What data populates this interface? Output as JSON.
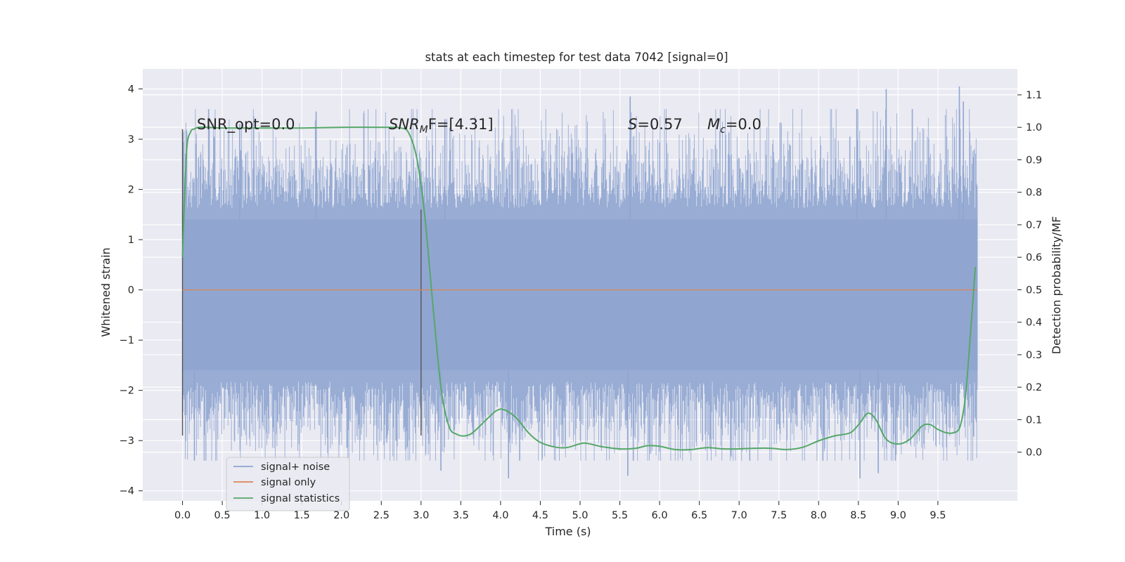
{
  "chart_data": {
    "type": "line",
    "title": "stats at each timestep for test data 7042 [signal=0]",
    "xlabel": "Time (s)",
    "ylabel": "Whitened strain",
    "y2label": "Detection probability/MF",
    "xlim": [
      -0.5,
      10.5
    ],
    "ylim": [
      -4.2,
      4.4
    ],
    "y2lim": [
      -0.15,
      1.18
    ],
    "x_ticks": [
      0.0,
      0.5,
      1.0,
      1.5,
      2.0,
      2.5,
      3.0,
      3.5,
      4.0,
      4.5,
      5.0,
      5.5,
      6.0,
      6.5,
      7.0,
      7.5,
      8.0,
      8.5,
      9.0,
      9.5
    ],
    "x_tick_labels": [
      "0.0",
      "0.5",
      "1.0",
      "1.5",
      "2.0",
      "2.5",
      "3.0",
      "3.5",
      "4.0",
      "4.5",
      "5.0",
      "5.5",
      "6.0",
      "6.5",
      "7.0",
      "7.5",
      "8.0",
      "8.5",
      "9.0",
      "9.5"
    ],
    "y_ticks": [
      4,
      3,
      2,
      1,
      0,
      -1,
      -2,
      -3,
      -4
    ],
    "y_tick_labels": [
      "4",
      "3",
      "2",
      "1",
      "0",
      "−1",
      "−2",
      "−3",
      "−4"
    ],
    "y2_ticks": [
      1.1,
      1.0,
      0.9,
      0.8,
      0.7,
      0.6,
      0.5,
      0.4,
      0.3,
      0.2,
      0.1,
      0.0
    ],
    "y2_tick_labels": [
      "1.1",
      "1.0",
      "0.9",
      "0.8",
      "0.7",
      "0.6",
      "0.5",
      "0.4",
      "0.3",
      "0.2",
      "0.1",
      "0.0"
    ],
    "grid": true,
    "legend_placement": "lower-left",
    "series": [
      {
        "name": "signal+ noise",
        "axis": "left",
        "color": "#8fa5d0",
        "description_of_values": "dense white noise, band roughly -1.6 to 1.4 with spikes to about 4.05 and -3.75",
        "x_range": [
          0.0,
          10.0
        ],
        "core_band": [
          -1.6,
          1.4
        ],
        "peaks": [
          {
            "x": 0.72,
            "y": 3.3
          },
          {
            "x": 1.68,
            "y": 3.55
          },
          {
            "x": 3.3,
            "y": 3.4
          },
          {
            "x": 5.63,
            "y": 3.85
          },
          {
            "x": 8.48,
            "y": 3.6
          },
          {
            "x": 8.85,
            "y": 4.0
          },
          {
            "x": 9.77,
            "y": 4.05
          },
          {
            "x": 9.82,
            "y": 3.75
          },
          {
            "x": 4.1,
            "y": -3.75
          },
          {
            "x": 5.6,
            "y": -3.7
          },
          {
            "x": 8.52,
            "y": -3.75
          },
          {
            "x": 8.75,
            "y": -3.65
          },
          {
            "x": 3.25,
            "y": -3.6
          },
          {
            "x": 0.15,
            "y": -3.4
          }
        ]
      },
      {
        "name": "signal only",
        "axis": "left",
        "color": "#dd8452",
        "x": [
          0.0,
          10.0
        ],
        "y": [
          0.0,
          0.0
        ]
      },
      {
        "name": "signal statistics",
        "axis": "right",
        "color": "#55a868",
        "x": [
          0.0,
          0.05,
          0.1,
          0.15,
          0.2,
          0.3,
          0.5,
          1.0,
          1.5,
          2.0,
          2.5,
          2.75,
          2.85,
          2.95,
          3.05,
          3.15,
          3.25,
          3.35,
          3.45,
          3.55,
          3.65,
          3.8,
          3.95,
          4.05,
          4.2,
          4.35,
          4.5,
          4.7,
          4.85,
          5.05,
          5.25,
          5.5,
          5.7,
          5.85,
          6.0,
          6.2,
          6.4,
          6.6,
          6.8,
          7.0,
          7.2,
          7.4,
          7.6,
          7.8,
          8.0,
          8.2,
          8.4,
          8.52,
          8.62,
          8.72,
          8.85,
          9.0,
          9.15,
          9.3,
          9.4,
          9.5,
          9.6,
          9.7,
          9.78,
          9.85,
          9.92,
          9.97
        ],
        "y": [
          0.6,
          0.92,
          0.985,
          0.995,
          1.0,
          1.0,
          0.998,
          0.998,
          0.998,
          1.0,
          1.0,
          0.998,
          0.98,
          0.9,
          0.72,
          0.45,
          0.2,
          0.08,
          0.055,
          0.05,
          0.06,
          0.095,
          0.128,
          0.13,
          0.105,
          0.06,
          0.03,
          0.015,
          0.015,
          0.028,
          0.018,
          0.01,
          0.012,
          0.02,
          0.018,
          0.008,
          0.008,
          0.014,
          0.01,
          0.01,
          0.012,
          0.012,
          0.008,
          0.015,
          0.035,
          0.05,
          0.06,
          0.09,
          0.12,
          0.1,
          0.04,
          0.025,
          0.04,
          0.08,
          0.085,
          0.07,
          0.06,
          0.06,
          0.08,
          0.18,
          0.4,
          0.57
        ]
      }
    ],
    "vertical_markers": [
      {
        "x": 0.0,
        "y_top": 3.2,
        "y_bottom": -2.9,
        "color": "#555555"
      },
      {
        "x": 3.0,
        "y_top": 1.6,
        "y_bottom": -2.9,
        "color": "#555555"
      }
    ],
    "annotations": [
      {
        "text": "SNR_opt=0.0",
        "x": 0.2,
        "y": 3.2
      },
      {
        "text": "SNR_MF=[4.31]",
        "x": 2.6,
        "y": 3.2
      },
      {
        "text": "S=0.57",
        "x": 5.6,
        "y": 3.2
      },
      {
        "text": "M_c=0.0",
        "x": 6.6,
        "y": 3.2
      }
    ]
  },
  "annotations_display": {
    "snr_opt": "SNR_opt=0.0",
    "snr_mf_symbol": "SNR",
    "snr_mf_sub": "M",
    "snr_mf_tail": "F=[4.31]",
    "s_symbol": "S",
    "s_value": "=0.57",
    "mc_symbol": "M",
    "mc_sub": "c",
    "mc_value": "=0.0"
  },
  "colors": {
    "plot_background": "#eaeaf2",
    "grid": "#ffffff",
    "noise": "#8fa5d0",
    "signal_only": "#dd8452",
    "statistics": "#55a868",
    "marker": "#555555"
  }
}
